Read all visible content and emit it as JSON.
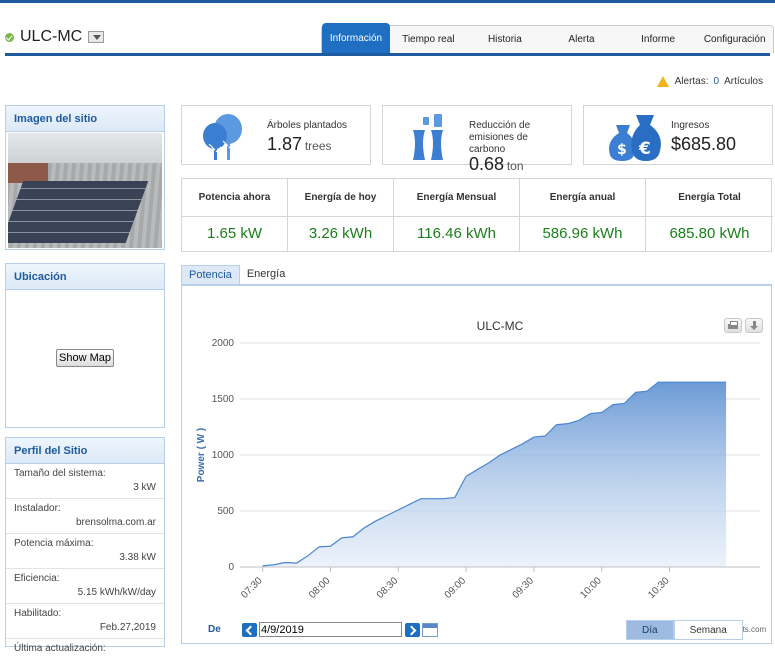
{
  "header": {
    "site_name": "ULC-MC",
    "tabs": [
      "Información",
      "Tiempo real",
      "Historia",
      "Alerta",
      "Informe",
      "Configuración"
    ]
  },
  "alerts": {
    "label": "Alertas:",
    "count": "0",
    "suffix": "Artículos"
  },
  "site_image": {
    "title": "Imagen del sitio"
  },
  "location": {
    "title": "Ubicación",
    "button": "Show Map"
  },
  "profile": {
    "title": "Perfil del Sitio",
    "rows": [
      {
        "label": "Tamaño del sistema:",
        "value": "3 kW"
      },
      {
        "label": "Instalador:",
        "value": "brensolma.com.ar"
      },
      {
        "label": "Potencia máxima:",
        "value": "3.38 kW"
      },
      {
        "label": "Eficiencia:",
        "value": "5.15 kWh/kW/day"
      },
      {
        "label": "Habilitado:",
        "value": "Feb.27,2019"
      },
      {
        "label": "Última actualización:",
        "value": ""
      }
    ]
  },
  "stats": {
    "trees": {
      "label": "Árboles plantados",
      "value": "1.87",
      "unit": "trees"
    },
    "carbon": {
      "label": "Reducción de emisiones de carbono",
      "value": "0.68",
      "unit": "ton"
    },
    "income": {
      "label": "Ingresos",
      "value": "$685.80"
    }
  },
  "metrics": [
    {
      "label": "Potencia ahora",
      "value": "1.65 kW"
    },
    {
      "label": "Energía de hoy",
      "value": "3.26 kWh"
    },
    {
      "label": "Energía Mensual",
      "value": "116.46 kWh"
    },
    {
      "label": "Energía anual",
      "value": "586.96 kWh"
    },
    {
      "label": "Energía Total",
      "value": "685.80 kWh"
    }
  ],
  "chart_tabs": [
    "Potencia",
    "Energía"
  ],
  "date_nav": {
    "label": "De",
    "date": "4/9/2019"
  },
  "range_tabs": [
    "Día",
    "Semana"
  ],
  "credit": "charts.com",
  "colors": {
    "accent": "#1e6fc2",
    "value_green": "#1a7f1a",
    "area_fill": "#6d9bd6"
  },
  "chart_data": {
    "type": "area",
    "title": "ULC-MC",
    "ylabel": "Power ( W )",
    "xlabel": "",
    "ylim": [
      0,
      2000
    ],
    "y_ticks": [
      0,
      500,
      1000,
      1500,
      2000
    ],
    "x_ticks": [
      "07:30",
      "08:00",
      "08:30",
      "09:00",
      "09:30",
      "10:00",
      "10:30"
    ],
    "series": [
      {
        "x": [
          "07:30",
          "07:35",
          "07:40",
          "07:45",
          "07:50",
          "07:55",
          "08:00",
          "08:05",
          "08:10",
          "08:15",
          "08:20",
          "08:25",
          "08:30",
          "08:35",
          "08:40",
          "08:45",
          "08:50",
          "08:55",
          "09:00",
          "09:05",
          "09:10",
          "09:15",
          "09:20",
          "09:25",
          "09:30",
          "09:35",
          "09:40",
          "09:45",
          "09:50",
          "09:55",
          "10:00",
          "10:05",
          "10:10",
          "10:15",
          "10:20",
          "10:25",
          "10:30",
          "10:35",
          "10:40",
          "10:45",
          "10:50",
          "10:55"
        ],
        "values": [
          10,
          20,
          40,
          35,
          100,
          180,
          185,
          260,
          270,
          350,
          410,
          460,
          510,
          560,
          610,
          610,
          610,
          620,
          810,
          870,
          930,
          1000,
          1050,
          1100,
          1160,
          1170,
          1270,
          1280,
          1310,
          1370,
          1380,
          1450,
          1460,
          1560,
          1570,
          1650,
          1650,
          1650,
          1650,
          1650,
          1650,
          1650
        ]
      }
    ]
  }
}
